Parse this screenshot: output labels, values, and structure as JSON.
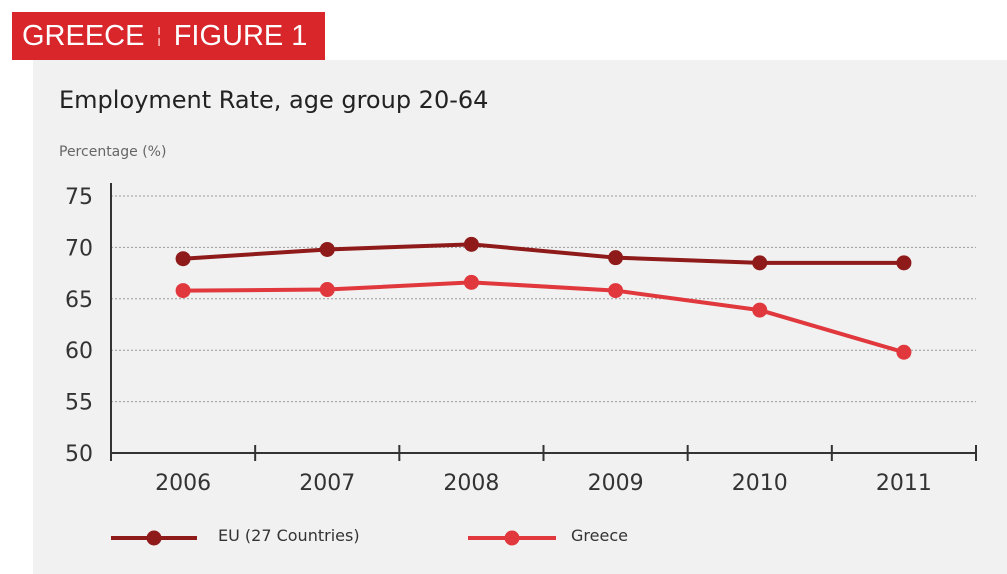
{
  "header": {
    "country": "GREECE",
    "separator": "¦",
    "figure": "FIGURE 1"
  },
  "colors": {
    "header_bg": "#d8262b",
    "panel_bg": "#f1f1f1",
    "eu": "#8e1a1a",
    "greece": "#e0383d"
  },
  "chart_data": {
    "type": "line",
    "title": "Employment Rate, age group 20-64",
    "ylabel": "Percentage (%)",
    "xlabel": "",
    "categories": [
      "2006",
      "2007",
      "2008",
      "2009",
      "2010",
      "2011"
    ],
    "ylim": [
      50,
      75
    ],
    "yticks": [
      "50",
      "55",
      "60",
      "65",
      "70",
      "75"
    ],
    "grid": true,
    "legend_position": "bottom",
    "series": [
      {
        "name": "EU (27 Countries)",
        "color": "#8e1a1a",
        "values": [
          68.9,
          69.8,
          70.3,
          69.0,
          68.5,
          68.5
        ]
      },
      {
        "name": "Greece",
        "color": "#e0383d",
        "values": [
          65.8,
          65.9,
          66.6,
          65.8,
          63.9,
          59.8
        ]
      }
    ]
  }
}
